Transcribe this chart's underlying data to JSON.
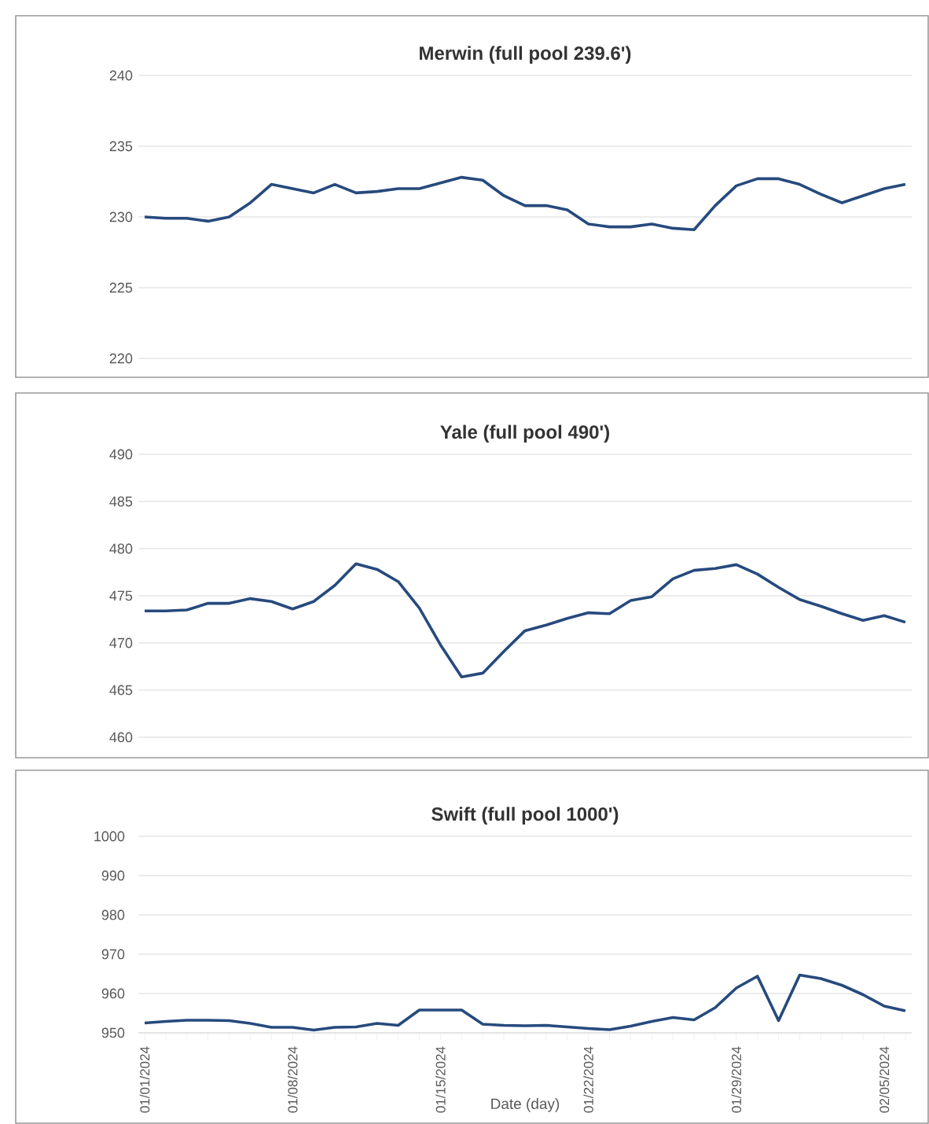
{
  "chart_data": [
    {
      "type": "line",
      "title": "Merwin (full pool 239.6')",
      "categories": [
        null,
        null,
        null,
        null,
        null,
        null,
        null,
        null,
        null,
        null,
        null,
        null,
        null,
        null,
        null,
        null,
        null,
        null,
        null,
        null,
        null,
        null,
        null,
        null,
        null,
        null,
        null,
        null,
        null,
        null,
        null,
        null,
        null,
        null,
        null,
        null,
        null
      ],
      "values": [
        230.0,
        229.9,
        229.9,
        229.7,
        230.0,
        231.0,
        232.3,
        232.0,
        231.7,
        232.3,
        231.7,
        231.8,
        232.0,
        232.0,
        232.4,
        232.8,
        232.6,
        231.5,
        230.8,
        230.8,
        230.5,
        229.5,
        229.3,
        229.3,
        229.5,
        229.2,
        229.1,
        230.8,
        232.2,
        232.7,
        232.7,
        232.3,
        231.6,
        231.0,
        231.5,
        232.0,
        232.3
      ],
      "color": "#264a7d",
      "ylim": [
        220,
        240
      ],
      "yticks": [
        220,
        225,
        230,
        235,
        240
      ],
      "grid": "y",
      "tick_labels": "y"
    },
    {
      "type": "line",
      "title": "Yale (full pool 490')",
      "categories": [
        null,
        null,
        null,
        null,
        null,
        null,
        null,
        null,
        null,
        null,
        null,
        null,
        null,
        null,
        null,
        null,
        null,
        null,
        null,
        null,
        null,
        null,
        null,
        null,
        null,
        null,
        null,
        null,
        null,
        null,
        null,
        null,
        null,
        null,
        null,
        null,
        null
      ],
      "values": [
        473.4,
        473.4,
        473.5,
        474.2,
        474.2,
        474.7,
        474.4,
        473.6,
        474.4,
        476.1,
        478.4,
        477.8,
        476.5,
        473.7,
        469.8,
        466.4,
        466.8,
        469.1,
        471.3,
        471.9,
        472.6,
        473.2,
        473.1,
        474.5,
        474.9,
        476.8,
        477.7,
        477.9,
        478.3,
        477.3,
        475.9,
        474.6,
        473.9,
        473.1,
        472.4,
        472.9,
        472.2
      ],
      "color": "#264a7d",
      "ylim": [
        460,
        490
      ],
      "yticks": [
        460,
        465,
        470,
        475,
        480,
        485,
        490
      ],
      "grid": "y",
      "tick_labels": "y"
    },
    {
      "type": "line",
      "title": "Swift (full pool 1000')",
      "xlabel": "Date (day)",
      "categories": [
        "01/01/2024",
        null,
        null,
        null,
        null,
        null,
        null,
        "01/08/2024",
        null,
        null,
        null,
        null,
        null,
        null,
        "01/15/2024",
        null,
        null,
        null,
        null,
        null,
        null,
        "01/22/2024",
        null,
        null,
        null,
        null,
        null,
        null,
        "01/29/2024",
        null,
        null,
        null,
        null,
        null,
        null,
        "02/05/2024",
        null
      ],
      "values": [
        952.5,
        952.9,
        953.2,
        953.2,
        953.1,
        952.4,
        951.4,
        951.4,
        950.7,
        951.4,
        951.5,
        952.4,
        951.9,
        955.8,
        955.8,
        955.8,
        952.2,
        951.9,
        951.8,
        951.9,
        951.5,
        951.1,
        950.8,
        951.7,
        952.9,
        953.9,
        953.3,
        956.4,
        961.4,
        964.4,
        953.1,
        964.7,
        963.8,
        962.1,
        959.7,
        956.8,
        955.6
      ],
      "color": "#264a7d",
      "ylim": [
        950,
        1000
      ],
      "yticks": [
        950,
        960,
        970,
        980,
        990,
        1000
      ],
      "grid": "y"
    }
  ]
}
